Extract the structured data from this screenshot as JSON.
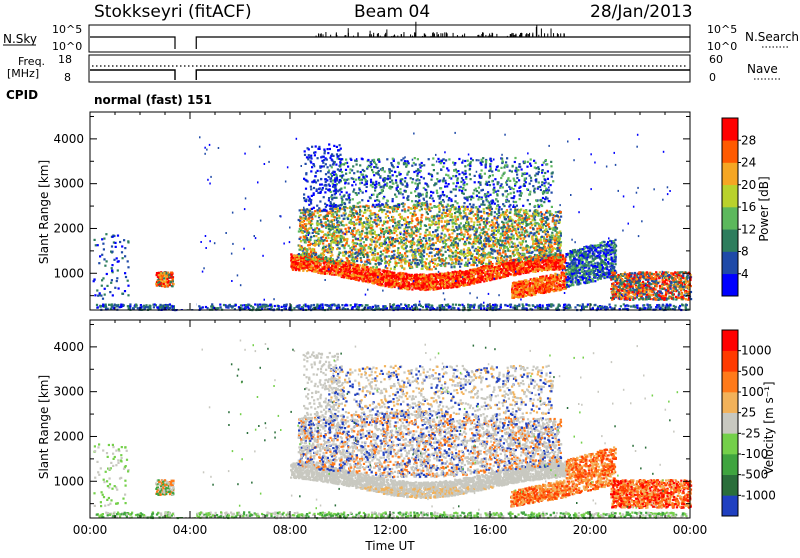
{
  "header": {
    "station": "Stokkseyri (fitACF)",
    "beam": "Beam 04",
    "date": "28/Jan/2013"
  },
  "panel_labels": {
    "nsky": "N.Sky",
    "nsky_ticks": [
      "10^5",
      "10^0"
    ],
    "nsearch": "N.Search",
    "freq_line1": "Freq.",
    "freq_line2": "[MHz]",
    "freq_ticks": [
      "18",
      "8"
    ],
    "nave": "Nave",
    "nave_ticks": [
      "60",
      "0"
    ],
    "cpid": "CPID",
    "cpid_text": "normal (fast) 151"
  },
  "chart_data": [
    {
      "type": "heatmap",
      "title": "",
      "ylabel": "Slant Range [km]",
      "xlabel": "",
      "ylim": [
        180,
        4600
      ],
      "xlim": [
        0,
        24
      ],
      "y_ticks": [
        1000,
        2000,
        3000,
        4000
      ],
      "y_tick_labels": [
        "1000",
        "2000",
        "3000",
        "4000"
      ],
      "colorbar": {
        "label": "Power [dB]",
        "ticks": [
          "4",
          "8",
          "12",
          "16",
          "20",
          "24",
          "28"
        ],
        "colors": [
          "#0000ff",
          "#1f4aa8",
          "#2e7d5e",
          "#5cb85c",
          "#b9d22c",
          "#f5a623",
          "#ff5a00",
          "#ff0000"
        ]
      }
    },
    {
      "type": "heatmap",
      "title": "",
      "ylabel": "Slant Range [km]",
      "xlabel": "Time UT",
      "ylim": [
        180,
        4600
      ],
      "xlim": [
        0,
        24
      ],
      "y_ticks": [
        1000,
        2000,
        3000,
        4000
      ],
      "y_tick_labels": [
        "1000",
        "2000",
        "3000",
        "4000"
      ],
      "x_tick_labels": [
        "00:00",
        "04:00",
        "08:00",
        "12:00",
        "16:00",
        "20:00",
        "00:00"
      ],
      "colorbar": {
        "label": "Velocity [m s⁻¹]",
        "ticks": [
          "1000",
          "500",
          "100",
          "25",
          "-25",
          "-100",
          "-500",
          "-1000"
        ],
        "colors": [
          "#2040c0",
          "#2a6e3a",
          "#3fa43f",
          "#74d04a",
          "#c8c8c0",
          "#f2b25a",
          "#ff7a1a",
          "#ff3a00",
          "#ff0000"
        ]
      }
    }
  ]
}
